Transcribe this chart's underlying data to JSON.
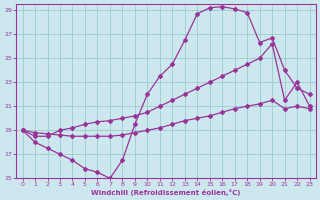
{
  "xlabel": "Windchill (Refroidissement éolien,°C)",
  "background_color": "#cce8ee",
  "line_color": "#993399",
  "grid_color": "#99cccc",
  "xlim": [
    -0.5,
    23.5
  ],
  "ylim": [
    15,
    29.5
  ],
  "xticks": [
    0,
    1,
    2,
    3,
    4,
    5,
    6,
    7,
    8,
    9,
    10,
    11,
    12,
    13,
    14,
    15,
    16,
    17,
    18,
    19,
    20,
    21,
    22,
    23
  ],
  "yticks": [
    15,
    17,
    19,
    21,
    23,
    25,
    27,
    29
  ],
  "series1_x": [
    0,
    1,
    2,
    3,
    4,
    5,
    6,
    7,
    8,
    9,
    10,
    11,
    12,
    13,
    14,
    15,
    16,
    17,
    18,
    19,
    20,
    21,
    22,
    23
  ],
  "series1_y": [
    19,
    18,
    17.5,
    17,
    16.5,
    15.8,
    15.5,
    15,
    16.5,
    19.5,
    22,
    23.5,
    24.5,
    26.5,
    28.7,
    29.2,
    29.3,
    29.1,
    28.8,
    26.3,
    26.7,
    24.0,
    22.5,
    22.0
  ],
  "series2_x": [
    0,
    1,
    2,
    3,
    4,
    5,
    6,
    7,
    8,
    9,
    10,
    11,
    12,
    13,
    14,
    15,
    16,
    17,
    18,
    19,
    20,
    21,
    22,
    23
  ],
  "series2_y": [
    19,
    18.5,
    18.5,
    19.0,
    19.2,
    19.5,
    19.7,
    19.8,
    20.0,
    20.2,
    20.5,
    21.0,
    21.5,
    22.0,
    22.5,
    23.0,
    23.5,
    24.0,
    24.5,
    25.0,
    26.2,
    21.5,
    23.0,
    21.0
  ],
  "series3_x": [
    0,
    1,
    2,
    3,
    4,
    5,
    6,
    7,
    8,
    9,
    10,
    11,
    12,
    13,
    14,
    15,
    16,
    17,
    18,
    19,
    20,
    21,
    22,
    23
  ],
  "series3_y": [
    19,
    18.8,
    18.7,
    18.6,
    18.5,
    18.5,
    18.5,
    18.5,
    18.6,
    18.8,
    19.0,
    19.2,
    19.5,
    19.8,
    20.0,
    20.2,
    20.5,
    20.8,
    21.0,
    21.2,
    21.5,
    20.8,
    21.0,
    20.8
  ]
}
